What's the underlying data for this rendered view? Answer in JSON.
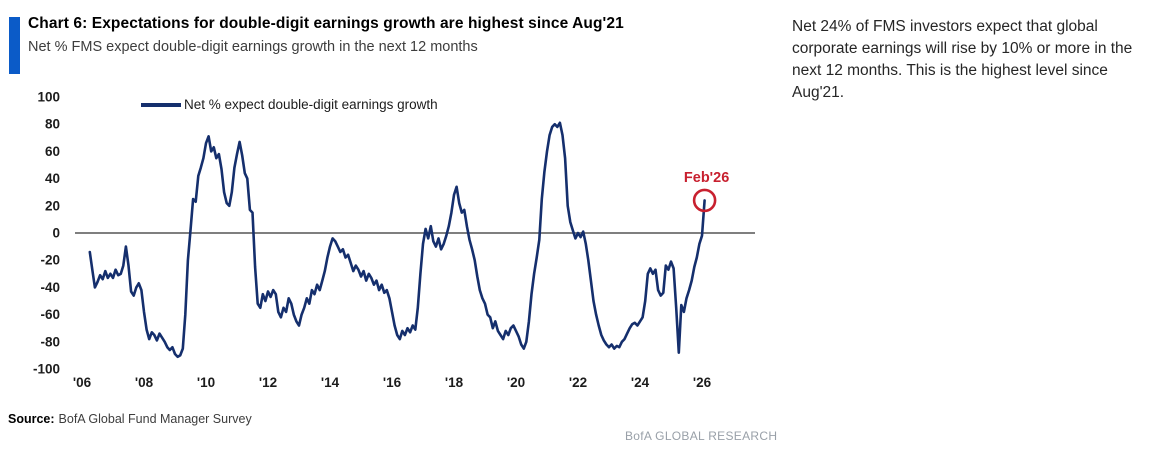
{
  "header": {
    "title": "Chart 6: Expectations for double-digit earnings growth are highest since Aug'21",
    "subtitle": "Net % FMS expect double-digit earnings growth in the next 12 months"
  },
  "commentary": "Net 24% of FMS investors expect that global corporate earnings will rise by 10% or more in the next 12 months. This is the highest level since Aug'21.",
  "footer": {
    "source_label": "Source:",
    "source_text": "BofA Global Fund Manager Survey",
    "brand": "BofA GLOBAL RESEARCH"
  },
  "colors": {
    "accent_bar": "#0b5bc8",
    "series_line": "#152f6d",
    "annotation_red": "#c8202f",
    "zero_line": "#7f7f7f",
    "tick_text": "#1c1c1c"
  },
  "chart_data": {
    "type": "line",
    "legend": [
      "Net % expect double-digit earnings growth"
    ],
    "legend_position": "top",
    "xlabel": "",
    "ylabel": "",
    "ylim": [
      -100,
      100
    ],
    "yticks": [
      100,
      80,
      60,
      40,
      20,
      0,
      -20,
      -40,
      -60,
      -80,
      -100
    ],
    "xticks": [
      "'06",
      "'08",
      "'10",
      "'12",
      "'14",
      "'16",
      "'18",
      "'20",
      "'22",
      "'24",
      "'26"
    ],
    "xtick_years": [
      2006,
      2008,
      2010,
      2012,
      2014,
      2016,
      2018,
      2020,
      2022,
      2024,
      2026
    ],
    "grid": false,
    "zero_line": true,
    "annotation": {
      "label": "Feb'26",
      "x": 2026.083,
      "y": 24
    },
    "series": [
      {
        "name": "Net % expect double-digit earnings growth",
        "x_start": 2006.25,
        "x_step": 0.08333,
        "frequency": "monthly",
        "values": [
          -14,
          -27,
          -40,
          -36,
          -31,
          -34,
          -28,
          -33,
          -30,
          -33,
          -27,
          -31,
          -30,
          -24,
          -10,
          -24,
          -43,
          -46,
          -40,
          -37,
          -42,
          -58,
          -71,
          -78,
          -73,
          -75,
          -79,
          -74,
          -77,
          -80,
          -84,
          -86,
          -84,
          -89,
          -91,
          -90,
          -85,
          -60,
          -20,
          2,
          25,
          23,
          42,
          48,
          55,
          66,
          71,
          60,
          63,
          55,
          58,
          47,
          30,
          22,
          20,
          30,
          48,
          58,
          67,
          57,
          44,
          40,
          17,
          15,
          -25,
          -52,
          -55,
          -45,
          -50,
          -43,
          -47,
          -42,
          -45,
          -58,
          -62,
          -55,
          -58,
          -48,
          -52,
          -60,
          -65,
          -68,
          -60,
          -55,
          -48,
          -52,
          -42,
          -45,
          -38,
          -42,
          -35,
          -28,
          -18,
          -10,
          -4,
          -6,
          -10,
          -14,
          -12,
          -18,
          -16,
          -22,
          -28,
          -24,
          -27,
          -32,
          -28,
          -35,
          -30,
          -33,
          -38,
          -35,
          -42,
          -38,
          -44,
          -42,
          -48,
          -58,
          -68,
          -75,
          -78,
          -72,
          -75,
          -70,
          -73,
          -68,
          -71,
          -55,
          -30,
          -8,
          3,
          -4,
          5,
          -6,
          -10,
          -4,
          -12,
          -8,
          -2,
          5,
          15,
          28,
          34,
          22,
          15,
          17,
          5,
          -5,
          -12,
          -20,
          -32,
          -42,
          -48,
          -52,
          -60,
          -62,
          -70,
          -65,
          -72,
          -75,
          -78,
          -72,
          -75,
          -70,
          -68,
          -72,
          -76,
          -82,
          -85,
          -80,
          -65,
          -45,
          -30,
          -18,
          -5,
          25,
          45,
          60,
          72,
          78,
          80,
          78,
          81,
          72,
          55,
          20,
          8,
          2,
          -4,
          0,
          -3,
          1,
          -8,
          -20,
          -35,
          -50,
          -60,
          -68,
          -75,
          -79,
          -82,
          -84,
          -82,
          -85,
          -83,
          -84,
          -80,
          -78,
          -74,
          -70,
          -67,
          -66,
          -68,
          -65,
          -62,
          -50,
          -30,
          -26,
          -30,
          -27,
          -42,
          -46,
          -44,
          -24,
          -27,
          -21,
          -26,
          -55,
          -88,
          -53,
          -58,
          -48,
          -42,
          -35,
          -25,
          -18,
          -8,
          -2,
          24
        ]
      }
    ]
  }
}
